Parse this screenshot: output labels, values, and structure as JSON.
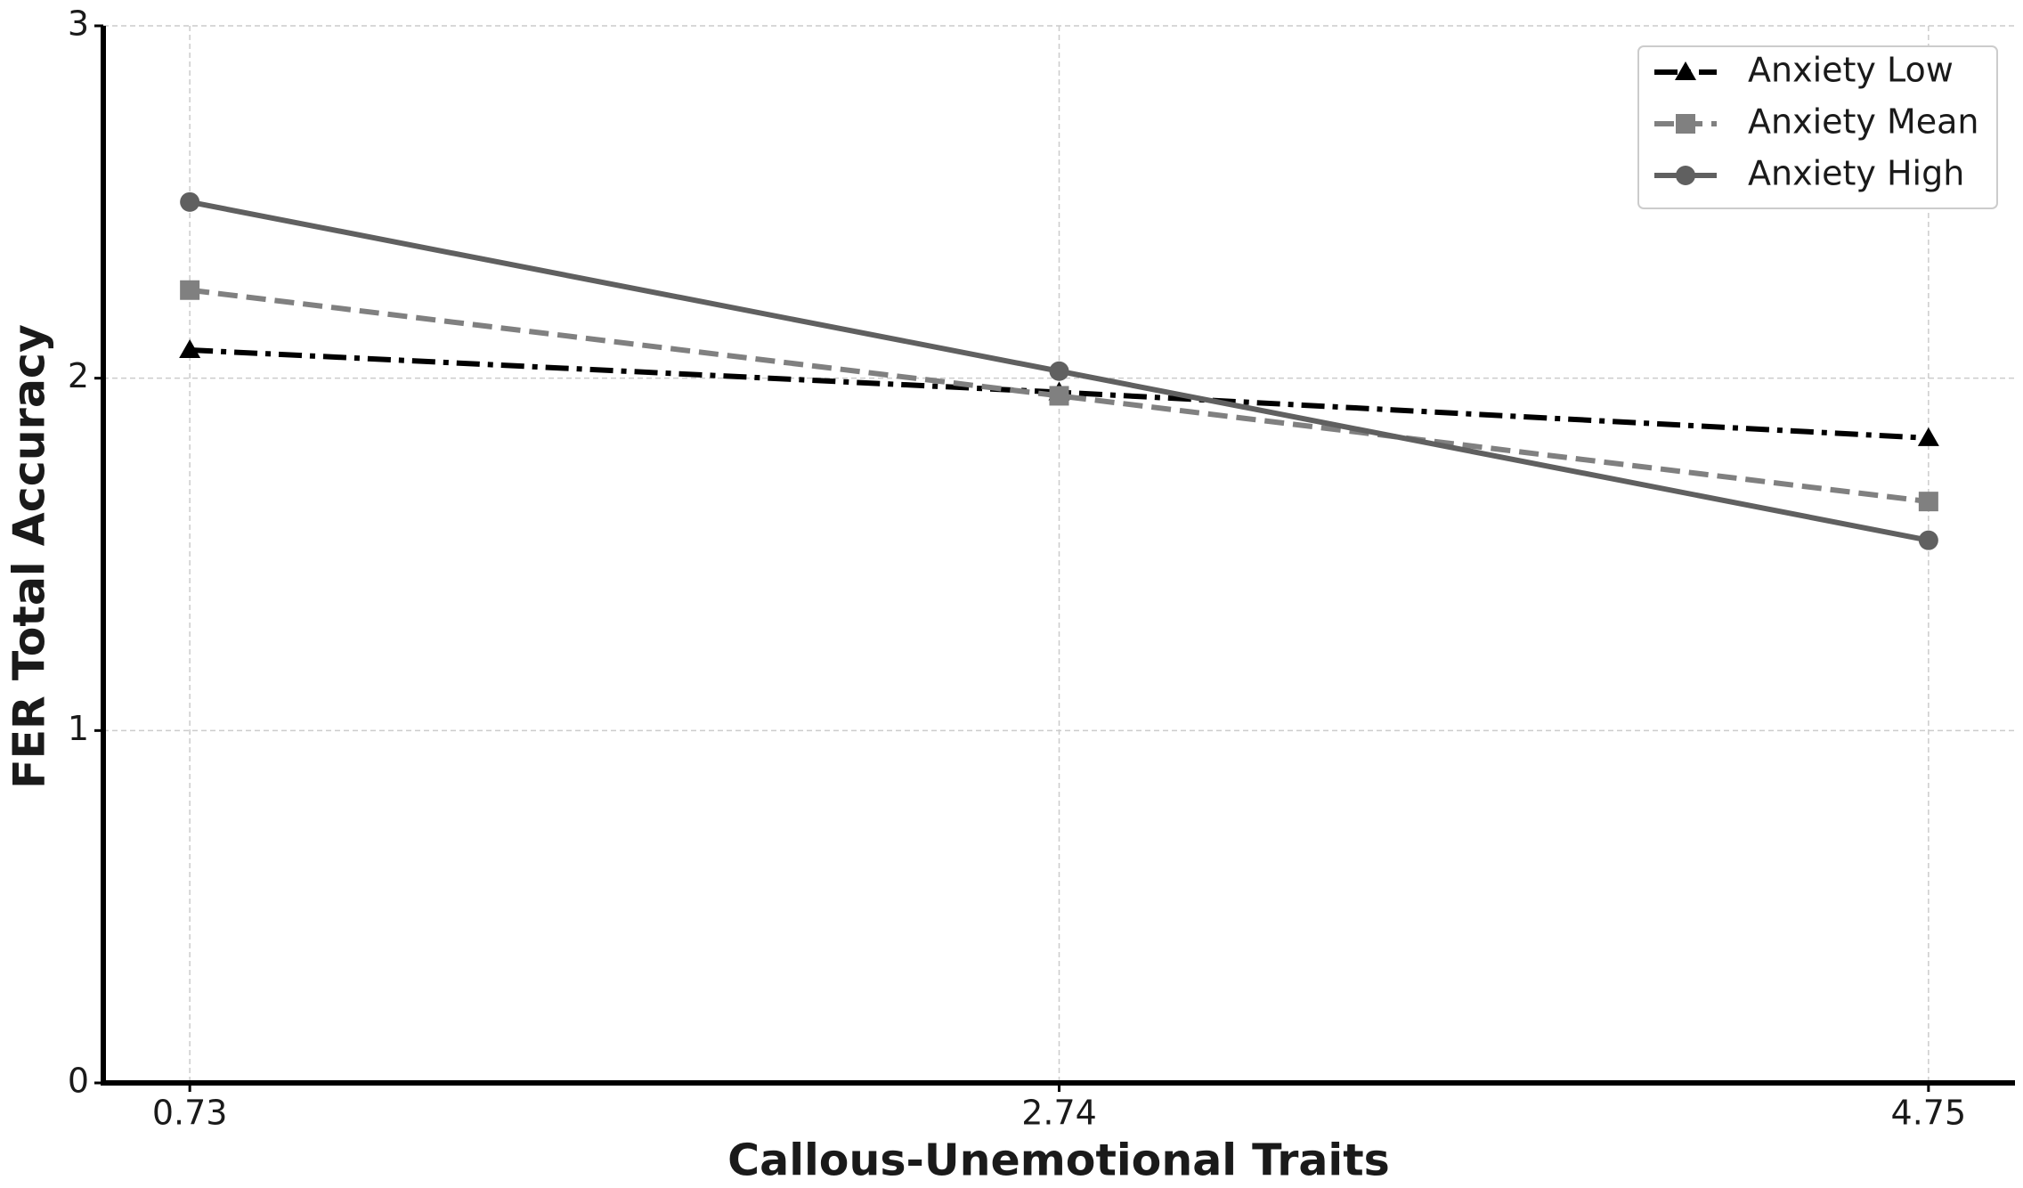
{
  "chart_data": {
    "type": "line",
    "x_label": "Callous-Unemotional Traits",
    "y_label": "FER Total Accuracy",
    "x": [
      0.73,
      2.74,
      4.75
    ],
    "xlim": [
      0.53,
      4.95
    ],
    "xticks": [
      0.73,
      2.74,
      4.75
    ],
    "ylim": [
      0,
      3
    ],
    "yticks": [
      0,
      1,
      2,
      3
    ],
    "grid": true,
    "legend": "upper right",
    "series": [
      {
        "name": "Anxiety Low",
        "color": "#000000",
        "dash": "dashdot",
        "marker": "triangle",
        "values": [
          2.08,
          1.96,
          1.83
        ]
      },
      {
        "name": "Anxiety Mean",
        "color": "#808080",
        "dash": "dashed",
        "marker": "square",
        "values": [
          2.25,
          1.95,
          1.65
        ]
      },
      {
        "name": "Anxiety High",
        "color": "#606060",
        "dash": "solid",
        "marker": "circle",
        "values": [
          2.5,
          2.02,
          1.54
        ]
      }
    ]
  }
}
